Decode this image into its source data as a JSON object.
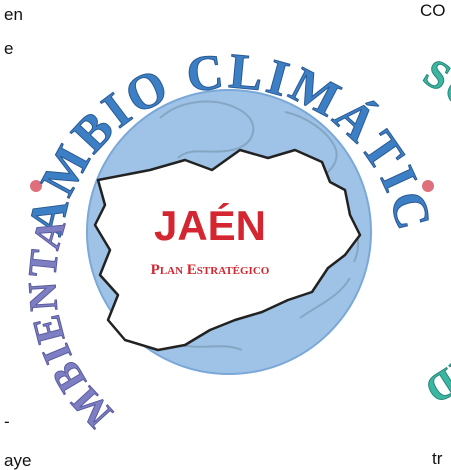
{
  "page_fragments": {
    "top_left_1": "en",
    "top_left_2": "e",
    "top_right": "co",
    "bottom_left_1": "-",
    "bottom_left_2": "aye",
    "bottom_right": "tr"
  },
  "logo": {
    "arc_top": "CAMBIO CLIMÁTICO",
    "arc_right": "SOSTENIBILIDAD",
    "arc_left": "AMBIENTAL",
    "title": "JAÉN",
    "subtitle": "Plan Estratégico",
    "colors": {
      "yellow": "#f2cb23",
      "blue": "#3d7fc4",
      "teal": "#3cb5a3",
      "purple": "#7e7fc3",
      "globe": "#9fc3e6",
      "dot": "#e06f7c",
      "title_red": "#d32630"
    }
  }
}
